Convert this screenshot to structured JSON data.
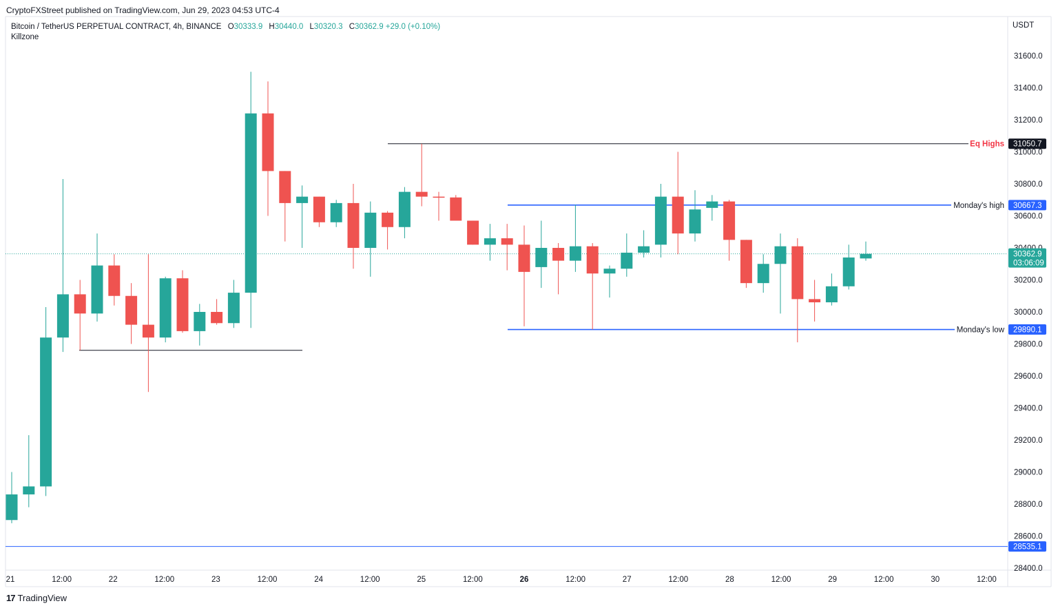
{
  "publisher": "CryptoFXStreet published on TradingView.com, Jun 29, 2023 04:53 UTC-4",
  "legend": {
    "symbol": "Bitcoin / TetherUS PERPETUAL CONTRACT, 4h, BINANCE",
    "o_label": "O",
    "o": "30333.9",
    "h_label": "H",
    "h": "30440.0",
    "l_label": "L",
    "l": "30320.3",
    "c_label": "C",
    "c": "30362.9",
    "change": "+29.0 (+0.10%)",
    "indicator": "Killzone"
  },
  "currency": "USDT",
  "brand": "TradingView",
  "colors": {
    "up": "#26a69a",
    "down": "#ef5350",
    "blue_line": "#2962ff",
    "eq_label": "#f23645"
  },
  "chart_data": {
    "type": "candlestick",
    "x_ticks": [
      "21",
      "12:00",
      "22",
      "12:00",
      "23",
      "12:00",
      "24",
      "12:00",
      "25",
      "12:00",
      "26",
      "12:00",
      "27",
      "12:00",
      "28",
      "12:00",
      "29",
      "12:00",
      "30",
      "12:00"
    ],
    "y_ticks": [
      "31600.0",
      "31400.0",
      "31200.0",
      "31000.0",
      "30800.0",
      "30600.0",
      "30400.0",
      "30200.0",
      "30000.0",
      "29800.0",
      "29600.0",
      "29400.0",
      "29200.0",
      "29000.0",
      "28800.0",
      "28600.0",
      "28400.0"
    ],
    "ylim": [
      28400,
      31600
    ],
    "candles": [
      {
        "o": 28700,
        "h": 29000,
        "l": 28680,
        "c": 28860
      },
      {
        "o": 28860,
        "h": 29230,
        "l": 28780,
        "c": 28910
      },
      {
        "o": 28910,
        "h": 30030,
        "l": 28850,
        "c": 29840
      },
      {
        "o": 29840,
        "h": 30830,
        "l": 29750,
        "c": 30110
      },
      {
        "o": 30110,
        "h": 30200,
        "l": 29760,
        "c": 29990
      },
      {
        "o": 29990,
        "h": 30490,
        "l": 29940,
        "c": 30290
      },
      {
        "o": 30290,
        "h": 30360,
        "l": 30040,
        "c": 30100
      },
      {
        "o": 30100,
        "h": 30180,
        "l": 29800,
        "c": 29920
      },
      {
        "o": 29920,
        "h": 30360,
        "l": 29500,
        "c": 29840
      },
      {
        "o": 29840,
        "h": 30220,
        "l": 29810,
        "c": 30210
      },
      {
        "o": 30210,
        "h": 30260,
        "l": 29870,
        "c": 29880
      },
      {
        "o": 29880,
        "h": 30050,
        "l": 29790,
        "c": 30000
      },
      {
        "o": 30000,
        "h": 30080,
        "l": 29920,
        "c": 29930
      },
      {
        "o": 29930,
        "h": 30200,
        "l": 29900,
        "c": 30120
      },
      {
        "o": 30120,
        "h": 31500,
        "l": 29900,
        "c": 31240
      },
      {
        "o": 31240,
        "h": 31440,
        "l": 30600,
        "c": 30880
      },
      {
        "o": 30880,
        "h": 30880,
        "l": 30440,
        "c": 30680
      },
      {
        "o": 30680,
        "h": 30790,
        "l": 30400,
        "c": 30720
      },
      {
        "o": 30720,
        "h": 30720,
        "l": 30530,
        "c": 30560
      },
      {
        "o": 30560,
        "h": 30700,
        "l": 30530,
        "c": 30680
      },
      {
        "o": 30680,
        "h": 30800,
        "l": 30270,
        "c": 30400
      },
      {
        "o": 30400,
        "h": 30690,
        "l": 30220,
        "c": 30620
      },
      {
        "o": 30620,
        "h": 30630,
        "l": 30390,
        "c": 30530
      },
      {
        "o": 30530,
        "h": 30780,
        "l": 30460,
        "c": 30750
      },
      {
        "o": 30750,
        "h": 31050,
        "l": 30660,
        "c": 30720
      },
      {
        "o": 30720,
        "h": 30750,
        "l": 30570,
        "c": 30715
      },
      {
        "o": 30715,
        "h": 30730,
        "l": 30570,
        "c": 30570
      },
      {
        "o": 30570,
        "h": 30570,
        "l": 30420,
        "c": 30420
      },
      {
        "o": 30420,
        "h": 30550,
        "l": 30320,
        "c": 30460
      },
      {
        "o": 30460,
        "h": 30550,
        "l": 30260,
        "c": 30420
      },
      {
        "o": 30420,
        "h": 30540,
        "l": 29910,
        "c": 30250
      },
      {
        "o": 30280,
        "h": 30570,
        "l": 30150,
        "c": 30400
      },
      {
        "o": 30400,
        "h": 30430,
        "l": 30110,
        "c": 30320
      },
      {
        "o": 30320,
        "h": 30670,
        "l": 30250,
        "c": 30410
      },
      {
        "o": 30410,
        "h": 30430,
        "l": 29890,
        "c": 30240
      },
      {
        "o": 30240,
        "h": 30290,
        "l": 30090,
        "c": 30270
      },
      {
        "o": 30270,
        "h": 30490,
        "l": 30220,
        "c": 30370
      },
      {
        "o": 30370,
        "h": 30510,
        "l": 30340,
        "c": 30410
      },
      {
        "o": 30420,
        "h": 30800,
        "l": 30340,
        "c": 30720
      },
      {
        "o": 30720,
        "h": 31000,
        "l": 30360,
        "c": 30490
      },
      {
        "o": 30490,
        "h": 30760,
        "l": 30440,
        "c": 30640
      },
      {
        "o": 30650,
        "h": 30730,
        "l": 30570,
        "c": 30690
      },
      {
        "o": 30690,
        "h": 30700,
        "l": 30320,
        "c": 30450
      },
      {
        "o": 30450,
        "h": 30450,
        "l": 30150,
        "c": 30180
      },
      {
        "o": 30180,
        "h": 30360,
        "l": 30120,
        "c": 30300
      },
      {
        "o": 30300,
        "h": 30490,
        "l": 29990,
        "c": 30410
      },
      {
        "o": 30410,
        "h": 30460,
        "l": 29810,
        "c": 30080
      },
      {
        "o": 30080,
        "h": 30200,
        "l": 29940,
        "c": 30060
      },
      {
        "o": 30060,
        "h": 30240,
        "l": 30040,
        "c": 30160
      },
      {
        "o": 30160,
        "h": 30420,
        "l": 30140,
        "c": 30340
      },
      {
        "o": 30334,
        "h": 30440,
        "l": 30320,
        "c": 30363
      }
    ],
    "levels": [
      {
        "name": "eq-highs",
        "label": "Eq Highs",
        "value": 31050.7,
        "price_label": "31050.7"
      },
      {
        "name": "mondays-high",
        "label": "Monday's high",
        "value": 30667.3,
        "price_label": "30667.3"
      },
      {
        "name": "mondays-low",
        "label": "Monday's low",
        "value": 29890.1,
        "price_label": "29890.1"
      },
      {
        "name": "low-line",
        "label": "",
        "value": 28535.1,
        "price_label": "28535.1"
      },
      {
        "name": "sweep-low",
        "label": "",
        "value": 29760,
        "price_label": ""
      }
    ],
    "last_price": {
      "value": 30362.9,
      "label": "30362.9",
      "countdown": "03:06:09"
    }
  }
}
